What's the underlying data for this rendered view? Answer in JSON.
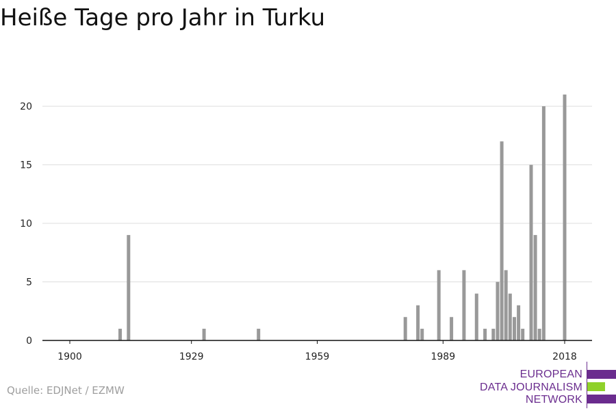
{
  "title": "Heiße Tage pro Jahr in Turku",
  "source": "Quelle: EDJNet / EZMW",
  "logo": {
    "lines": [
      "EUROPEAN",
      "DATA JOURNALISM",
      "NETWORK"
    ],
    "colors": {
      "purple": "#6a2c8e",
      "green": "#8fd12a"
    }
  },
  "colors": {
    "bar": "#999999",
    "grid": "#dddddd",
    "axis": "#111111",
    "tick_label": "#222222"
  },
  "chart_data": {
    "type": "bar",
    "title": "Heiße Tage pro Jahr in Turku",
    "xlabel": "",
    "ylabel": "",
    "xlim": [
      1900,
      2018
    ],
    "ylim": [
      0,
      21
    ],
    "xticks": [
      1900,
      1929,
      1959,
      1989,
      2018
    ],
    "yticks": [
      0,
      5,
      10,
      15,
      20
    ],
    "grid": true,
    "legend": "none",
    "x": [
      1912,
      1914,
      1932,
      1945,
      1980,
      1983,
      1984,
      1988,
      1991,
      1994,
      1997,
      1999,
      2001,
      2002,
      2003,
      2004,
      2005,
      2006,
      2007,
      2008,
      2010,
      2011,
      2012,
      2013,
      2014,
      2018
    ],
    "values": [
      1,
      9,
      1,
      1,
      2,
      3,
      1,
      6,
      2,
      6,
      4,
      1,
      1,
      5,
      17,
      6,
      4,
      2,
      3,
      1,
      15,
      9,
      1,
      20,
      0,
      21
    ]
  }
}
